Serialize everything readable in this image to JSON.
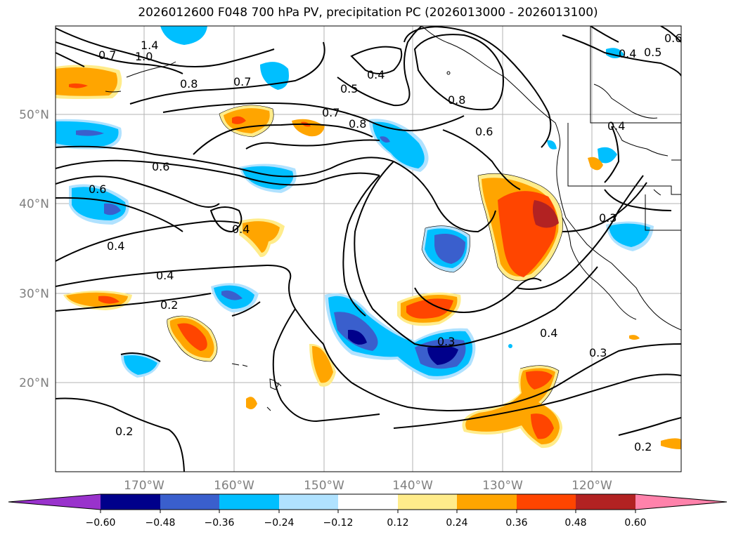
{
  "title": "2026012600 F048 700 hPa PV, precipitation PC (2026013000 - 2026013100)",
  "latitude_labels": [
    "50°N",
    "40°N",
    "30°N",
    "20°N"
  ],
  "longitude_labels": [
    "170°W",
    "160°W",
    "150°W",
    "140°W",
    "130°W",
    "120°W"
  ],
  "pv_contour_labels": [
    "1.4",
    "1.0",
    "0.7",
    "0.8",
    "0.7",
    "0.5",
    "0.4",
    "0.8",
    "0.7",
    "0.8",
    "0.6",
    "0.6",
    "0.6",
    "0.4",
    "0.4",
    "0.4",
    "0.2",
    "0.3",
    "0.4",
    "0.3",
    "0.3",
    "0.2",
    "0.2",
    "0.4",
    "0.5",
    "0.6",
    "0.4"
  ],
  "colorbar": {
    "tick_labels": [
      "−0.60",
      "−0.48",
      "−0.36",
      "−0.24",
      "−0.12",
      "0.12",
      "0.24",
      "0.36",
      "0.48",
      "0.60"
    ],
    "colors": [
      "#9932cc",
      "#00008b",
      "#3a5fcd",
      "#00bfff",
      "#b0e2ff",
      "#ffffff",
      "#ffec8b",
      "#ffa500",
      "#ff4500",
      "#b22222",
      "#ff82ab"
    ]
  }
}
